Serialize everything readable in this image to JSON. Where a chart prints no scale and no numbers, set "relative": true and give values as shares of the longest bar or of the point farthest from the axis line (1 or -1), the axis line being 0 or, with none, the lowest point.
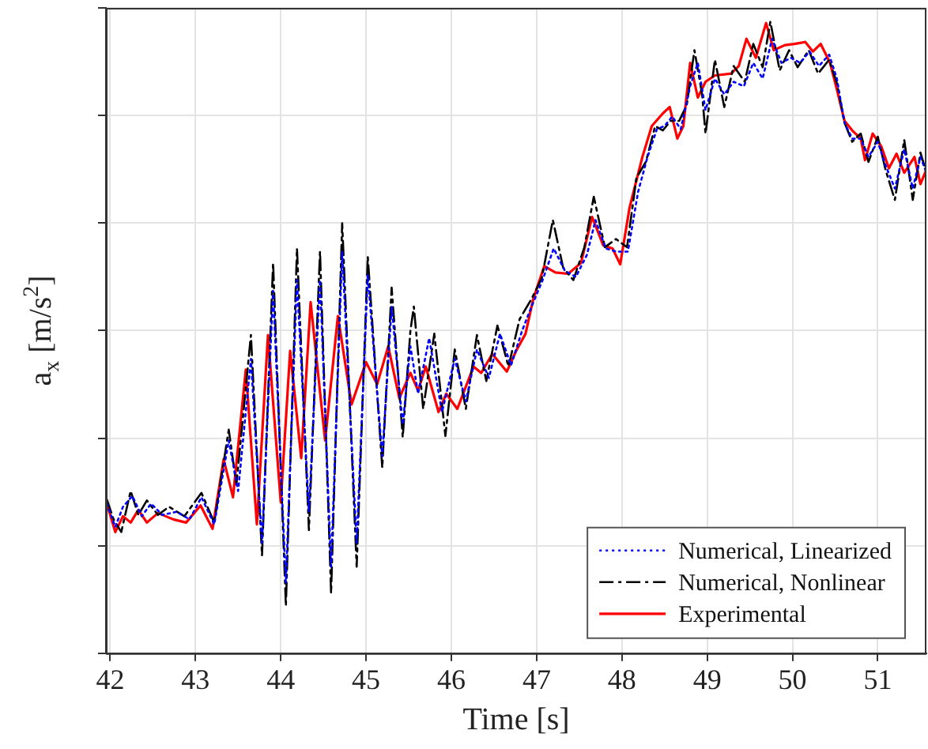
{
  "chart_data": {
    "type": "line",
    "xlabel": "Time [s]",
    "ylabel": "a$_{x}$ [m/s$^{2}$]",
    "relative": true,
    "xlim": [
      41.95,
      51.57
    ],
    "xticks": [
      42,
      43,
      44,
      45,
      46,
      47,
      48,
      49,
      50,
      51
    ],
    "grid": true,
    "legend": "bottom right",
    "marker": "none",
    "series": [
      {
        "name": "Numerical, Linearized",
        "color": "#0000ff",
        "line_style": "dotted",
        "x": [
          41.96,
          42.06,
          42.15,
          42.26,
          42.37,
          42.48,
          42.61,
          42.78,
          42.93,
          43.07,
          43.22,
          43.39,
          43.5,
          43.65,
          43.78,
          43.91,
          44.06,
          44.19,
          44.33,
          44.46,
          44.59,
          44.72,
          44.89,
          45.02,
          45.19,
          45.3,
          45.43,
          45.52,
          45.61,
          45.74,
          45.89,
          46.04,
          46.17,
          46.3,
          46.44,
          46.57,
          46.7,
          46.83,
          46.94,
          47.07,
          47.2,
          47.33,
          47.46,
          47.59,
          47.69,
          47.81,
          47.94,
          48.07,
          48.19,
          48.3,
          48.41,
          48.5,
          48.59,
          48.69,
          48.8,
          48.89,
          48.98,
          49.09,
          49.2,
          49.31,
          49.43,
          49.54,
          49.65,
          49.76,
          49.87,
          49.98,
          50.09,
          50.2,
          50.31,
          50.43,
          50.52,
          50.61,
          50.7,
          50.8,
          50.89,
          51.0,
          51.09,
          51.2,
          51.31,
          51.41,
          51.5,
          51.57
        ],
        "values": [
          0.237,
          0.2,
          0.232,
          0.249,
          0.217,
          0.237,
          0.219,
          0.224,
          0.212,
          0.247,
          0.204,
          0.337,
          0.257,
          0.466,
          0.175,
          0.574,
          0.112,
          0.591,
          0.224,
          0.591,
          0.137,
          0.636,
          0.175,
          0.599,
          0.312,
          0.549,
          0.362,
          0.486,
          0.411,
          0.499,
          0.382,
          0.466,
          0.399,
          0.481,
          0.436,
          0.506,
          0.456,
          0.511,
          0.549,
          0.591,
          0.641,
          0.606,
          0.596,
          0.631,
          0.686,
          0.641,
          0.636,
          0.636,
          0.731,
          0.786,
          0.83,
          0.835,
          0.85,
          0.83,
          0.898,
          0.935,
          0.86,
          0.91,
          0.885,
          0.905,
          0.898,
          0.935,
          0.91,
          0.973,
          0.935,
          0.943,
          0.935,
          0.953,
          0.93,
          0.948,
          0.91,
          0.84,
          0.815,
          0.815,
          0.786,
          0.81,
          0.773,
          0.736,
          0.798,
          0.736,
          0.786,
          0.761
        ]
      },
      {
        "name": "Numerical, Nonlinear",
        "color": "#000000",
        "line_style": "dashed",
        "x": [
          41.96,
          42.04,
          42.13,
          42.24,
          42.33,
          42.43,
          42.56,
          42.69,
          42.87,
          43.07,
          43.22,
          43.39,
          43.48,
          43.65,
          43.78,
          43.91,
          44.06,
          44.19,
          44.33,
          44.46,
          44.59,
          44.72,
          44.89,
          45.02,
          45.19,
          45.3,
          45.43,
          45.52,
          45.56,
          45.67,
          45.8,
          45.93,
          46.04,
          46.17,
          46.3,
          46.41,
          46.54,
          46.67,
          46.8,
          46.94,
          47.06,
          47.19,
          47.31,
          47.43,
          47.56,
          47.67,
          47.8,
          47.93,
          48.06,
          48.17,
          48.28,
          48.39,
          48.48,
          48.57,
          48.67,
          48.76,
          48.85,
          48.94,
          48.98,
          49.09,
          49.2,
          49.31,
          49.44,
          49.54,
          49.65,
          49.74,
          49.85,
          49.96,
          50.06,
          50.19,
          50.3,
          50.43,
          50.52,
          50.61,
          50.7,
          50.8,
          50.89,
          51.0,
          51.09,
          51.2,
          51.31,
          51.41,
          51.5,
          51.57
        ],
        "values": [
          0.244,
          0.212,
          0.192,
          0.257,
          0.219,
          0.242,
          0.219,
          0.232,
          0.217,
          0.254,
          0.207,
          0.354,
          0.267,
          0.504,
          0.155,
          0.618,
          0.075,
          0.641,
          0.195,
          0.636,
          0.095,
          0.681,
          0.137,
          0.628,
          0.294,
          0.579,
          0.342,
          0.511,
          0.549,
          0.387,
          0.506,
          0.344,
          0.481,
          0.387,
          0.504,
          0.431,
          0.519,
          0.454,
          0.529,
          0.561,
          0.594,
          0.686,
          0.611,
          0.591,
          0.643,
          0.723,
          0.643,
          0.656,
          0.643,
          0.753,
          0.778,
          0.835,
          0.828,
          0.843,
          0.843,
          0.868,
          0.955,
          0.885,
          0.823,
          0.94,
          0.865,
          0.93,
          0.905,
          0.965,
          0.928,
          1,
          0.923,
          0.955,
          0.928,
          0.955,
          0.918,
          0.94,
          0.903,
          0.84,
          0.81,
          0.823,
          0.778,
          0.818,
          0.766,
          0.718,
          0.813,
          0.718,
          0.793,
          0.761
        ]
      },
      {
        "name": "Experimental",
        "color": "#ff0000",
        "line_style": "solid",
        "x": [
          41.96,
          42.06,
          42.15,
          42.24,
          42.33,
          42.43,
          42.56,
          42.74,
          42.89,
          43.06,
          43.2,
          43.33,
          43.44,
          43.59,
          43.72,
          43.85,
          44.0,
          44.11,
          44.24,
          44.35,
          44.52,
          44.67,
          44.83,
          45.0,
          45.13,
          45.26,
          45.39,
          45.52,
          45.61,
          45.7,
          45.85,
          45.94,
          46.07,
          46.26,
          46.35,
          46.48,
          46.65,
          46.76,
          46.87,
          46.96,
          47.09,
          47.22,
          47.37,
          47.52,
          47.65,
          47.78,
          47.89,
          47.98,
          48.09,
          48.24,
          48.35,
          48.48,
          48.56,
          48.65,
          48.72,
          48.8,
          48.89,
          48.98,
          49.09,
          49.28,
          49.37,
          49.46,
          49.57,
          49.69,
          49.78,
          49.91,
          50.02,
          50.15,
          50.24,
          50.33,
          50.44,
          50.52,
          50.61,
          50.7,
          50.8,
          50.85,
          50.94,
          51.04,
          51.13,
          51.22,
          51.31,
          51.43,
          51.5,
          51.57
        ],
        "values": [
          0.237,
          0.192,
          0.217,
          0.207,
          0.227,
          0.207,
          0.222,
          0.212,
          0.207,
          0.234,
          0.197,
          0.307,
          0.247,
          0.449,
          0.204,
          0.504,
          0.239,
          0.479,
          0.309,
          0.556,
          0.337,
          0.534,
          0.394,
          0.461,
          0.426,
          0.486,
          0.404,
          0.444,
          0.416,
          0.454,
          0.382,
          0.411,
          0.387,
          0.454,
          0.444,
          0.474,
          0.446,
          0.479,
          0.506,
          0.561,
          0.613,
          0.603,
          0.601,
          0.618,
          0.691,
          0.646,
          0.641,
          0.616,
          0.706,
          0.786,
          0.835,
          0.855,
          0.865,
          0.815,
          0.835,
          0.935,
          0.88,
          0.905,
          0.915,
          0.918,
          0.93,
          0.973,
          0.943,
          0.998,
          0.955,
          0.963,
          0.965,
          0.968,
          0.953,
          0.965,
          0.935,
          0.893,
          0.843,
          0.828,
          0.815,
          0.781,
          0.823,
          0.803,
          0.768,
          0.791,
          0.761,
          0.786,
          0.743,
          0.766
        ]
      }
    ]
  }
}
